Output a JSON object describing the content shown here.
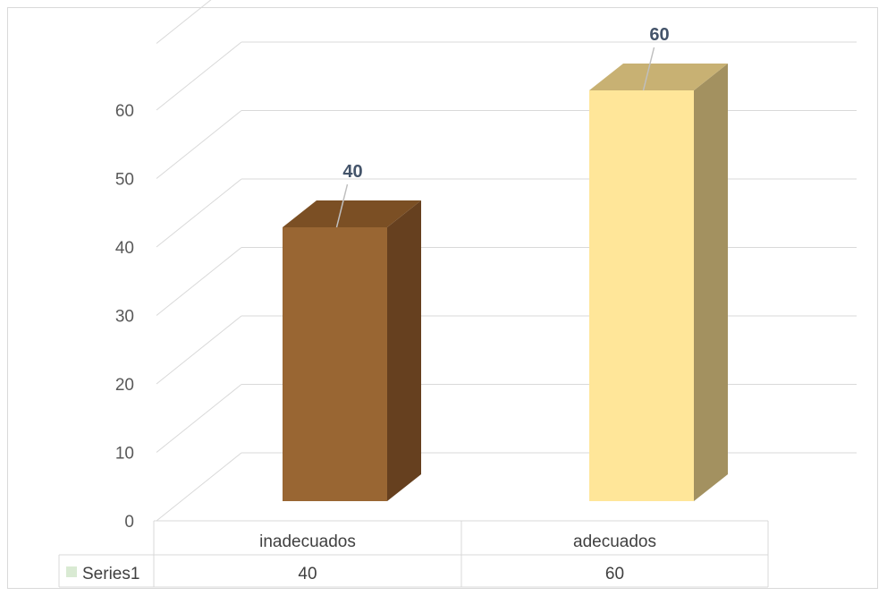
{
  "chart_data": {
    "type": "bar",
    "style": "3d-column",
    "categories": [
      "inadecuados",
      "adecuados"
    ],
    "series": [
      {
        "name": "Series1",
        "values": [
          40,
          60
        ]
      }
    ],
    "bar_colors": [
      {
        "front": "#996633",
        "side": "#66401f",
        "top": "#7b4f24"
      },
      {
        "front": "#ffe699",
        "side": "#a39160",
        "top": "#c8b173"
      }
    ],
    "yticks": [
      0,
      10,
      20,
      30,
      40,
      50,
      60
    ],
    "ylim": [
      0,
      70
    ],
    "grid": true,
    "data_labels": [
      "40",
      "60"
    ],
    "data_table": {
      "legend_label": "Series1",
      "legend_color": "#d9ead3",
      "row_values": [
        "40",
        "60"
      ]
    },
    "title": "",
    "xlabel": "",
    "ylabel": ""
  }
}
